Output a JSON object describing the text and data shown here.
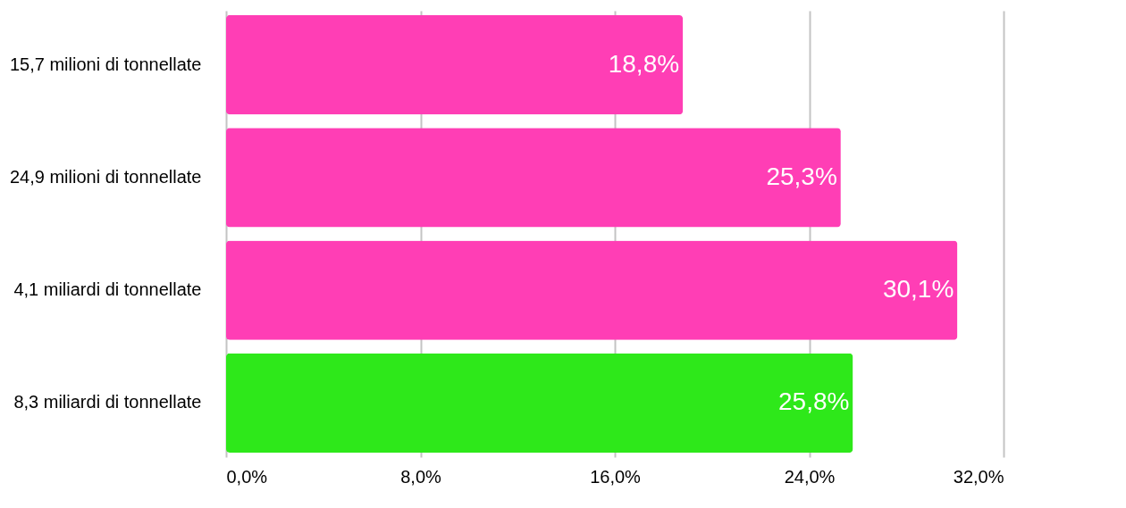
{
  "chart_data": {
    "type": "bar",
    "orientation": "horizontal",
    "categories": [
      "15,7 milioni di tonnellate",
      "24,9 milioni di tonnellate",
      "4,1 miliardi di tonnellate",
      "8,3 miliardi di tonnellate"
    ],
    "values": [
      18.8,
      25.3,
      30.1,
      25.8
    ],
    "value_labels": [
      "18,8%",
      "25,3%",
      "30,1%",
      "25,8%"
    ],
    "colors": [
      "#ff3eb5",
      "#ff3eb5",
      "#ff3eb5",
      "#2ee81a"
    ],
    "xlim": [
      0,
      32
    ],
    "xticks": [
      {
        "value": 0,
        "label": "0,0%"
      },
      {
        "value": 8,
        "label": "8,0%"
      },
      {
        "value": 16,
        "label": "16,0%"
      },
      {
        "value": 24,
        "label": "24,0%"
      },
      {
        "value": 32,
        "label": "32,0%"
      }
    ],
    "grid": "x"
  }
}
